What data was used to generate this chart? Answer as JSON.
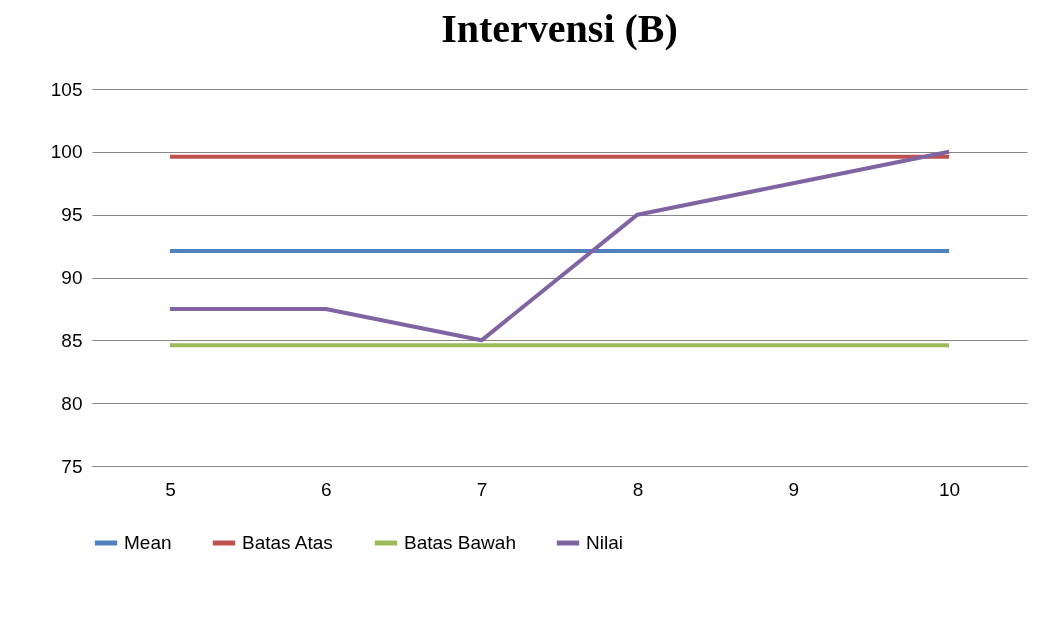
{
  "chart_data": {
    "type": "line",
    "title": "Intervensi (B)",
    "categories": [
      "5",
      "6",
      "7",
      "8",
      "9",
      "10"
    ],
    "series": [
      {
        "name": "Mean",
        "color": "#4f81bd",
        "values": [
          92.1,
          92.1,
          92.1,
          92.1,
          92.1,
          92.1
        ]
      },
      {
        "name": "Batas Atas",
        "color": "#c0504d",
        "values": [
          99.6,
          99.6,
          99.6,
          99.6,
          99.6,
          99.6
        ]
      },
      {
        "name": "Batas Bawah",
        "color": "#9bbb59",
        "values": [
          84.6,
          84.6,
          84.6,
          84.6,
          84.6,
          84.6
        ]
      },
      {
        "name": "Nilai",
        "color": "#8064a2",
        "values": [
          87.5,
          87.5,
          85,
          95,
          97.5,
          100
        ]
      }
    ],
    "ylim": [
      75,
      105
    ],
    "yticks": [
      75,
      80,
      85,
      90,
      95,
      100,
      105
    ],
    "grid": "y",
    "legend": "bottom"
  }
}
